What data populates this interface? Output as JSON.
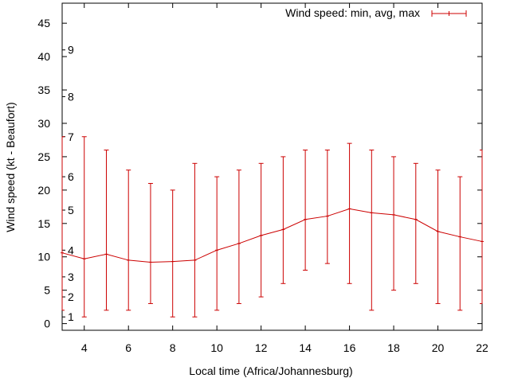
{
  "chart_data": {
    "type": "line",
    "title": "",
    "xlabel": "Local time (Africa/Johannesburg)",
    "ylabel": "Wind speed (kt - Beaufort)",
    "xlim": [
      3,
      22
    ],
    "ylim": [
      -1,
      48
    ],
    "x_ticks": [
      "4",
      "6",
      "8",
      "10",
      "12",
      "14",
      "16",
      "18",
      "20",
      "22"
    ],
    "y_ticks": [
      "0",
      "5",
      "10",
      "15",
      "20",
      "25",
      "30",
      "35",
      "40",
      "45"
    ],
    "beaufort_labels": [
      {
        "label": "1",
        "kt": 1
      },
      {
        "label": "2",
        "kt": 4
      },
      {
        "label": "3",
        "kt": 7
      },
      {
        "label": "4",
        "kt": 11
      },
      {
        "label": "5",
        "kt": 17
      },
      {
        "label": "6",
        "kt": 22
      },
      {
        "label": "7",
        "kt": 28
      },
      {
        "label": "8",
        "kt": 34
      },
      {
        "label": "9",
        "kt": 41
      }
    ],
    "legend": {
      "label": "Wind speed: min, avg, max",
      "placement": "top-right"
    },
    "series": [
      {
        "name": "Wind speed: min, avg, max",
        "color": "#cc0000",
        "x": [
          3,
          4,
          5,
          6,
          7,
          8,
          9,
          10,
          11,
          12,
          13,
          14,
          15,
          16,
          17,
          18,
          19,
          20,
          21,
          22
        ],
        "avg": [
          10.6,
          9.7,
          10.4,
          9.5,
          9.2,
          9.3,
          9.5,
          11.0,
          12.0,
          13.2,
          14.1,
          15.6,
          16.1,
          17.2,
          16.6,
          16.3,
          15.6,
          13.8,
          13.0,
          12.3
        ],
        "min": [
          2,
          1,
          2,
          2,
          3,
          1,
          1,
          2,
          3,
          4,
          6,
          8,
          9,
          6,
          2,
          5,
          6,
          3,
          2,
          3
        ],
        "max": [
          28,
          28,
          26,
          23,
          21,
          20,
          24,
          22,
          23,
          24,
          25,
          26,
          26,
          27,
          26,
          25,
          24,
          23,
          22,
          26
        ]
      }
    ]
  }
}
